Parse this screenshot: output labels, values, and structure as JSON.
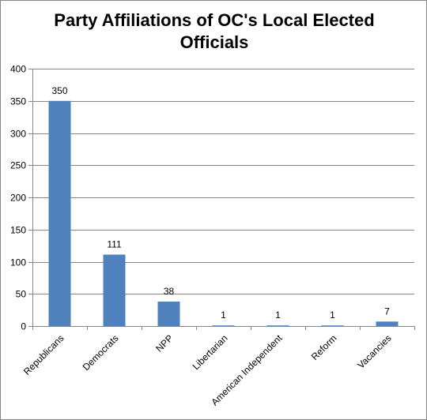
{
  "chart_data": {
    "type": "bar",
    "title": "Party Affiliations of OC's Local Elected Officials",
    "xlabel": "",
    "ylabel": "",
    "categories": [
      "Republicans",
      "Democrats",
      "NPP",
      "Libertarian",
      "American Independent",
      "Reform",
      "Vacancies"
    ],
    "values": [
      350,
      111,
      38,
      1,
      1,
      1,
      7
    ],
    "data_labels": [
      "350",
      "111",
      "38",
      "1",
      "1",
      "1",
      "7"
    ],
    "ylim": [
      0,
      400
    ],
    "yticks": [
      0,
      50,
      100,
      150,
      200,
      250,
      300,
      350,
      400
    ],
    "grid": true,
    "legend": "none",
    "bar_color": "#4f81bd",
    "grid_color": "#868686"
  }
}
